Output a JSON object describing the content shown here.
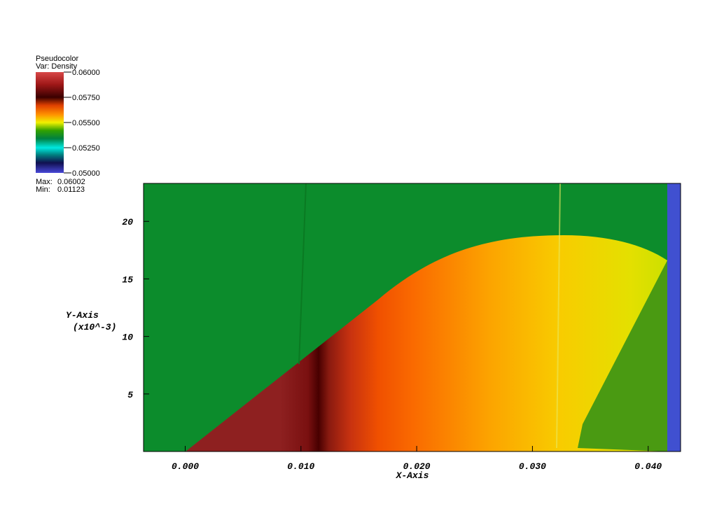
{
  "chart_data": {
    "type": "pseudocolor",
    "legend": {
      "title": "Pseudocolor",
      "variable": "Var: Density",
      "clim": [
        0.05,
        0.06
      ],
      "ticks": [
        {
          "value": 0.06,
          "label": "0.06000"
        },
        {
          "value": 0.0575,
          "label": "0.05750"
        },
        {
          "value": 0.055,
          "label": "0.05500"
        },
        {
          "value": 0.0525,
          "label": "0.05250"
        },
        {
          "value": 0.05,
          "label": "0.05000"
        }
      ],
      "max_label": "Max:",
      "max": 0.06002,
      "min_label": "Min:",
      "min": 0.01123
    },
    "x_label": "X-Axis",
    "y_label": "Y-Axis",
    "y_scale_label": "(x10^-3)",
    "xlim": [
      -0.0036,
      0.0428
    ],
    "ylim": [
      0,
      23.3
    ],
    "xticks": [
      {
        "value": 0,
        "label": "0.000"
      },
      {
        "value": 0.01,
        "label": "0.010"
      },
      {
        "value": 0.02,
        "label": "0.020"
      },
      {
        "value": 0.03,
        "label": "0.030"
      },
      {
        "value": 0.04,
        "label": "0.040"
      }
    ],
    "yticks": [
      5,
      10,
      15,
      20
    ]
  }
}
